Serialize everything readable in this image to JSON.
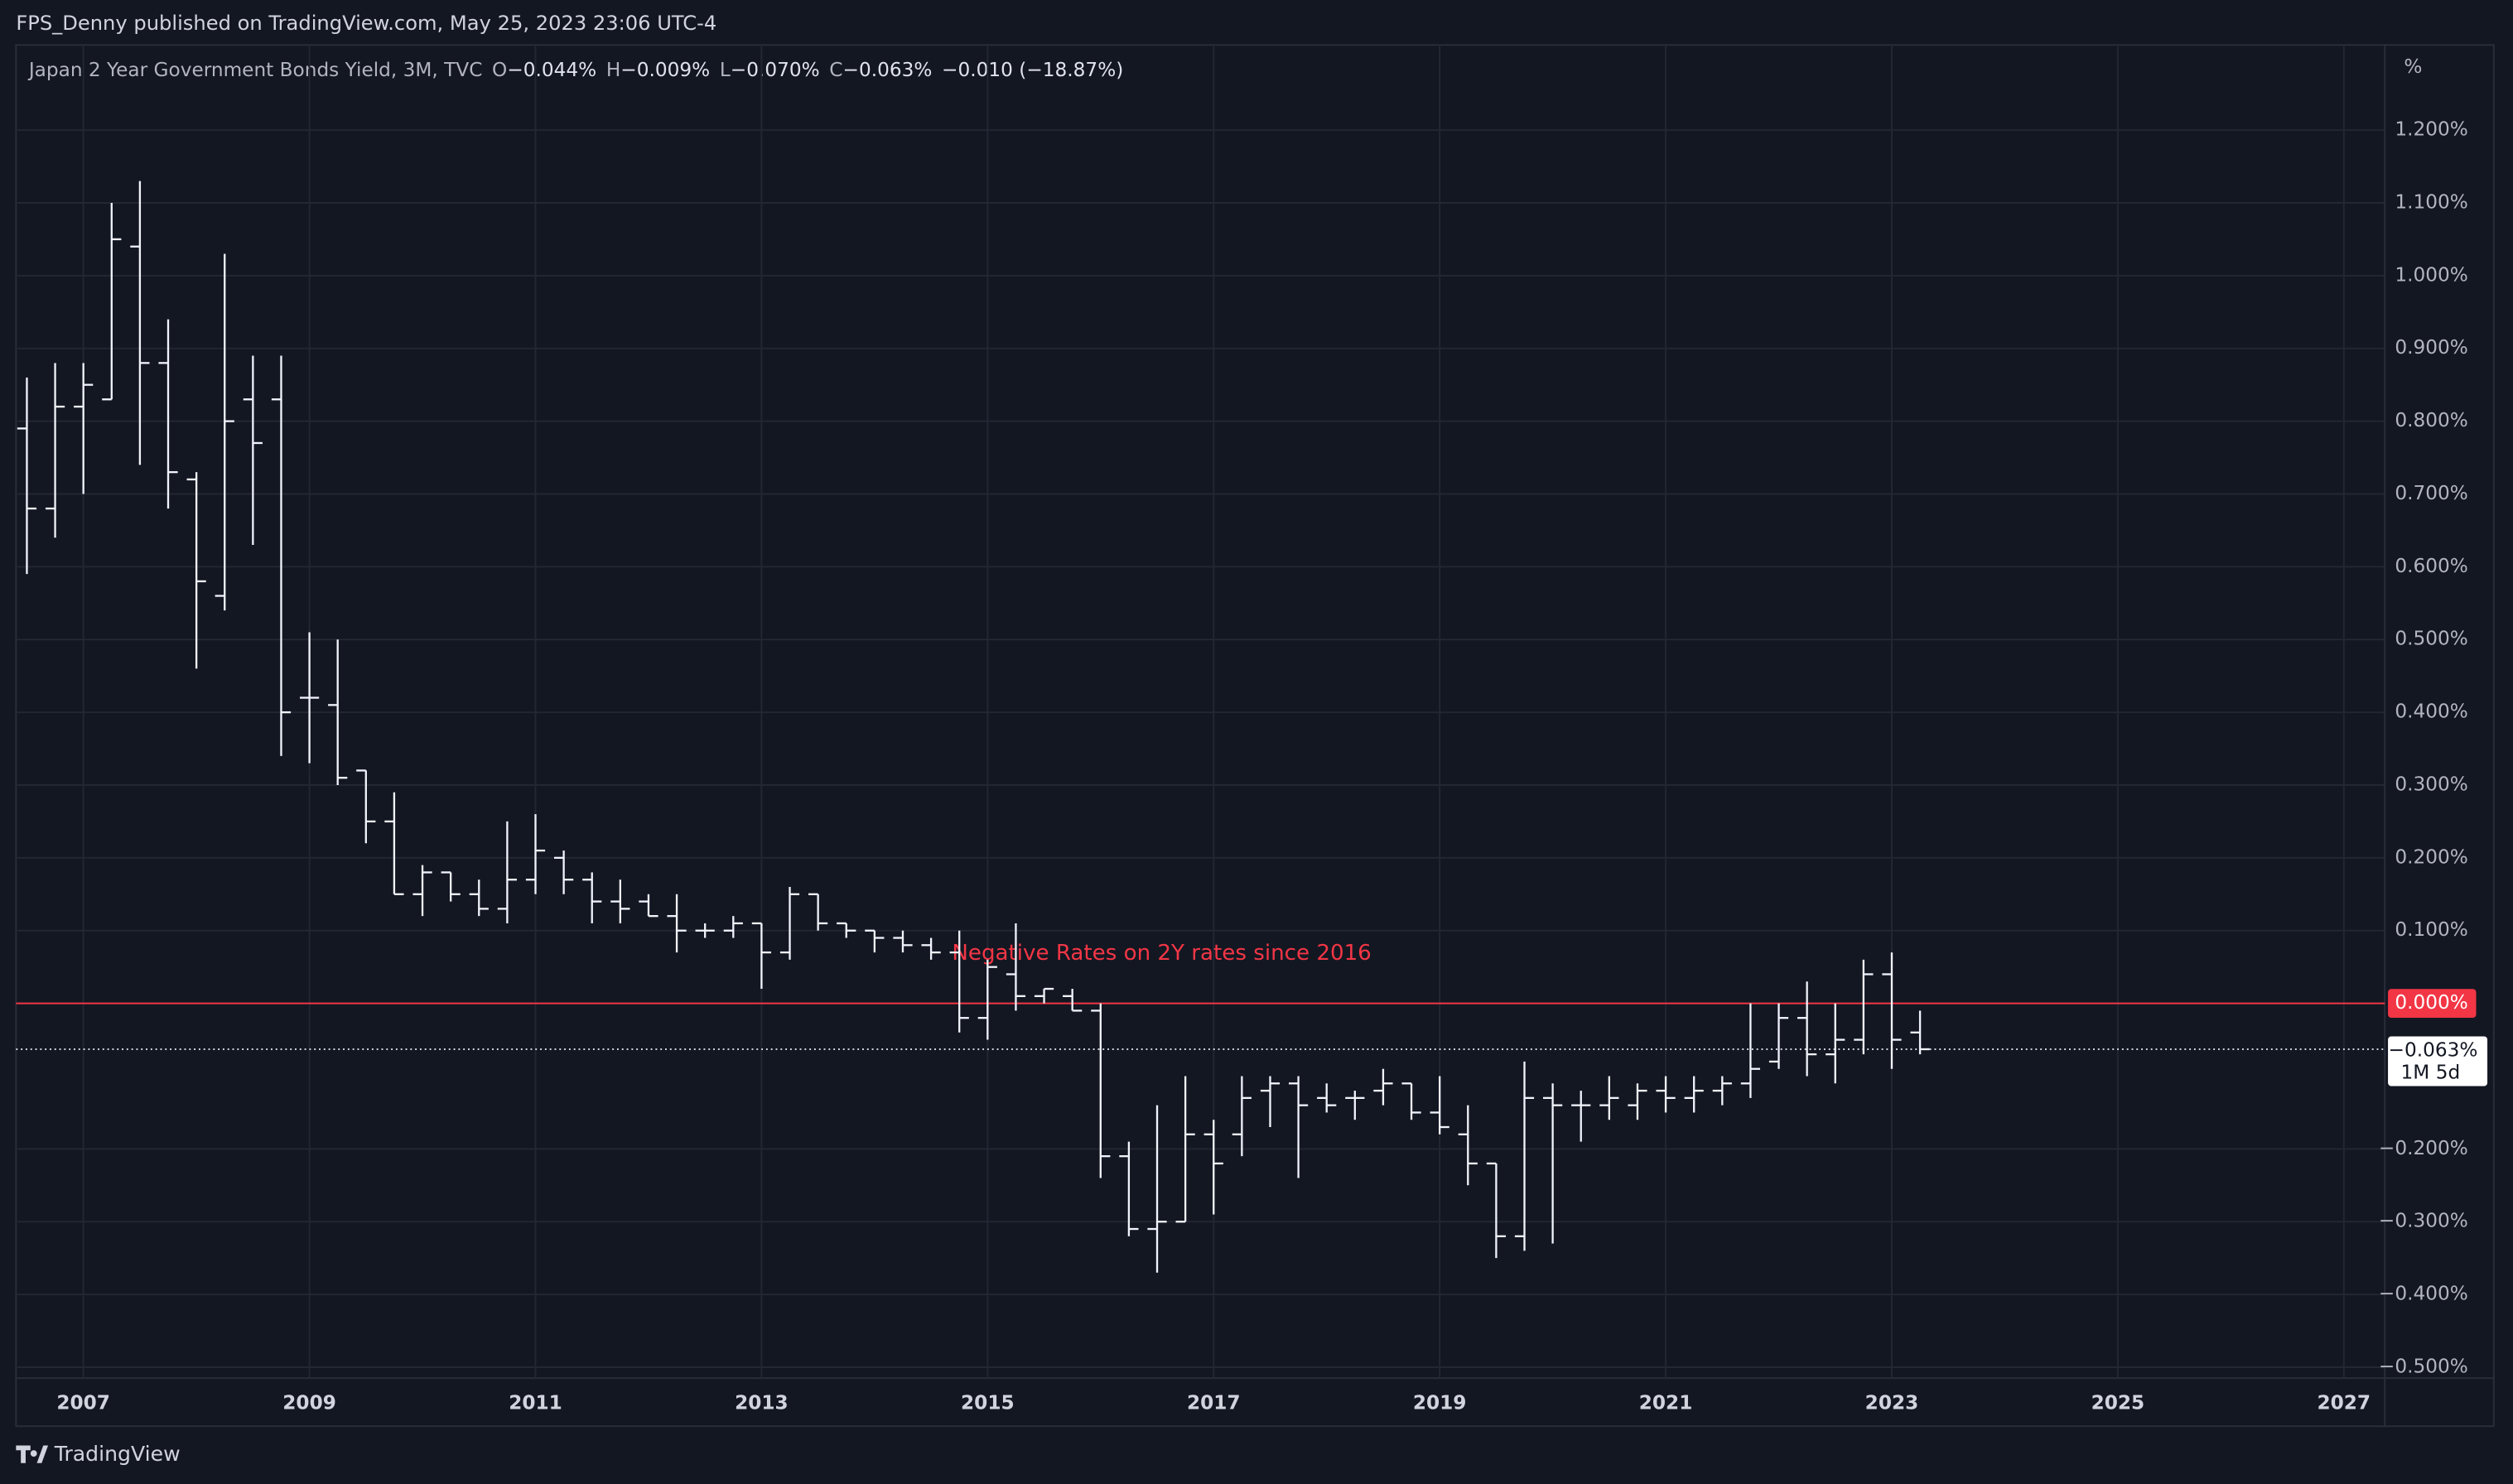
{
  "header": {
    "text": "FPS_Denny published on TradingView.com, May 25, 2023 23:06 UTC-4"
  },
  "footer": {
    "brand": "TradingView"
  },
  "chart_data": {
    "type": "ohlc",
    "legend": {
      "symbol": "Japan 2 Year Government Bonds Yield, 3M, TVC",
      "fields": [
        {
          "key": "O",
          "value": "−0.044%"
        },
        {
          "key": "H",
          "value": "−0.009%"
        },
        {
          "key": "L",
          "value": "−0.070%"
        },
        {
          "key": "C",
          "value": "−0.063%"
        }
      ],
      "change": "−0.010 (−18.87%)"
    },
    "unit": "%",
    "annotation": "Negative Rates on 2Y rates since 2016",
    "color": "#f0f3fa",
    "x": [
      2006.5,
      2006.75,
      2007,
      2007.25,
      2007.5,
      2007.75,
      2008,
      2008.25,
      2008.5,
      2008.75,
      2009,
      2009.25,
      2009.5,
      2009.75,
      2010,
      2010.25,
      2010.5,
      2010.75,
      2011,
      2011.25,
      2011.5,
      2011.75,
      2012,
      2012.25,
      2012.5,
      2012.75,
      2013,
      2013.25,
      2013.5,
      2013.75,
      2014,
      2014.25,
      2014.5,
      2014.75,
      2015,
      2015.25,
      2015.5,
      2015.75,
      2016,
      2016.25,
      2016.5,
      2016.75,
      2017,
      2017.25,
      2017.5,
      2017.75,
      2018,
      2018.25,
      2018.5,
      2018.75,
      2019,
      2019.25,
      2019.5,
      2019.75,
      2020,
      2020.25,
      2020.5,
      2020.75,
      2021,
      2021.25,
      2021.5,
      2021.75,
      2022,
      2022.25,
      2022.5,
      2022.75,
      2023,
      2023.25
    ],
    "open": [
      0.79,
      0.68,
      0.82,
      0.83,
      1.04,
      0.88,
      0.72,
      0.56,
      0.83,
      0.83,
      0.42,
      0.41,
      0.32,
      0.25,
      0.15,
      0.18,
      0.15,
      0.13,
      0.17,
      0.2,
      0.17,
      0.14,
      0.14,
      0.12,
      0.1,
      0.1,
      0.11,
      0.07,
      0.15,
      0.11,
      0.1,
      0.09,
      0.08,
      0.07,
      -0.02,
      0.04,
      0.01,
      0.01,
      -0.01,
      -0.21,
      -0.31,
      -0.3,
      -0.18,
      -0.18,
      -0.12,
      -0.11,
      -0.13,
      -0.13,
      -0.12,
      -0.11,
      -0.15,
      -0.18,
      -0.22,
      -0.32,
      -0.13,
      -0.14,
      -0.14,
      -0.14,
      -0.12,
      -0.13,
      -0.12,
      -0.11,
      -0.08,
      -0.02,
      -0.07,
      -0.05,
      0.04,
      -0.04
    ],
    "high": [
      0.86,
      0.88,
      0.88,
      1.1,
      1.13,
      0.94,
      0.73,
      1.03,
      0.89,
      0.89,
      0.51,
      0.5,
      0.32,
      0.29,
      0.19,
      0.18,
      0.17,
      0.25,
      0.26,
      0.21,
      0.18,
      0.17,
      0.15,
      0.15,
      0.11,
      0.12,
      0.11,
      0.16,
      0.15,
      0.11,
      0.1,
      0.1,
      0.09,
      0.1,
      0.06,
      0.11,
      0.02,
      0.02,
      0.0,
      -0.19,
      -0.14,
      -0.1,
      -0.16,
      -0.1,
      -0.1,
      -0.1,
      -0.11,
      -0.12,
      -0.09,
      -0.11,
      -0.1,
      -0.14,
      -0.22,
      -0.08,
      -0.11,
      -0.12,
      -0.1,
      -0.11,
      -0.1,
      -0.1,
      -0.1,
      0.0,
      0.0,
      0.03,
      0.0,
      0.06,
      0.07,
      -0.01
    ],
    "low": [
      0.59,
      0.64,
      0.7,
      0.83,
      0.74,
      0.68,
      0.46,
      0.54,
      0.63,
      0.34,
      0.33,
      0.3,
      0.22,
      0.15,
      0.12,
      0.14,
      0.12,
      0.11,
      0.15,
      0.15,
      0.11,
      0.11,
      0.12,
      0.07,
      0.09,
      0.09,
      0.02,
      0.06,
      0.1,
      0.09,
      0.07,
      0.07,
      0.06,
      -0.04,
      -0.05,
      -0.01,
      0.0,
      -0.01,
      -0.24,
      -0.32,
      -0.37,
      -0.3,
      -0.29,
      -0.21,
      -0.17,
      -0.24,
      -0.15,
      -0.16,
      -0.14,
      -0.16,
      -0.18,
      -0.25,
      -0.35,
      -0.34,
      -0.33,
      -0.19,
      -0.16,
      -0.16,
      -0.15,
      -0.15,
      -0.14,
      -0.13,
      -0.09,
      -0.1,
      -0.11,
      -0.07,
      -0.09,
      -0.07
    ],
    "close": [
      0.68,
      0.82,
      0.85,
      1.05,
      0.88,
      0.73,
      0.58,
      0.8,
      0.77,
      0.4,
      0.42,
      0.31,
      0.25,
      0.15,
      0.18,
      0.15,
      0.13,
      0.17,
      0.21,
      0.17,
      0.14,
      0.13,
      0.12,
      0.1,
      0.1,
      0.11,
      0.07,
      0.15,
      0.11,
      0.1,
      0.09,
      0.08,
      0.07,
      -0.02,
      0.05,
      0.01,
      0.02,
      -0.01,
      -0.21,
      -0.31,
      -0.3,
      -0.18,
      -0.22,
      -0.13,
      -0.11,
      -0.14,
      -0.14,
      -0.13,
      -0.11,
      -0.15,
      -0.17,
      -0.22,
      -0.32,
      -0.13,
      -0.14,
      -0.14,
      -0.13,
      -0.12,
      -0.13,
      -0.12,
      -0.11,
      -0.09,
      -0.02,
      -0.07,
      -0.05,
      0.04,
      -0.05,
      -0.063
    ],
    "xlim": [
      2006.404,
      2027.362
    ],
    "xticks": [
      2007,
      2009,
      2011,
      2013,
      2015,
      2017,
      2019,
      2021,
      2023,
      2025,
      2027
    ],
    "ylim": [
      -0.515,
      1.317
    ],
    "yticks": [
      {
        "value": 1.2,
        "label": "1.200%"
      },
      {
        "value": 1.1,
        "label": "1.100%"
      },
      {
        "value": 1.0,
        "label": "1.000%"
      },
      {
        "value": 0.9,
        "label": "0.900%"
      },
      {
        "value": 0.8,
        "label": "0.800%"
      },
      {
        "value": 0.7,
        "label": "0.700%"
      },
      {
        "value": 0.6,
        "label": "0.600%"
      },
      {
        "value": 0.5,
        "label": "0.500%"
      },
      {
        "value": 0.4,
        "label": "0.400%"
      },
      {
        "value": 0.3,
        "label": "0.300%"
      },
      {
        "value": 0.2,
        "label": "0.200%"
      },
      {
        "value": 0.1,
        "label": "0.100%"
      },
      {
        "value": -0.2,
        "label": "−0.200%"
      },
      {
        "value": -0.3,
        "label": "−0.300%"
      },
      {
        "value": -0.4,
        "label": "−0.400%"
      },
      {
        "value": -0.5,
        "label": "−0.500%"
      }
    ],
    "grid": true,
    "hline": {
      "value": 0,
      "label": "0.000%",
      "color": "#f23645"
    },
    "last_price": {
      "value": -0.063,
      "label": "−0.063%",
      "countdown": "1M 5d"
    }
  }
}
